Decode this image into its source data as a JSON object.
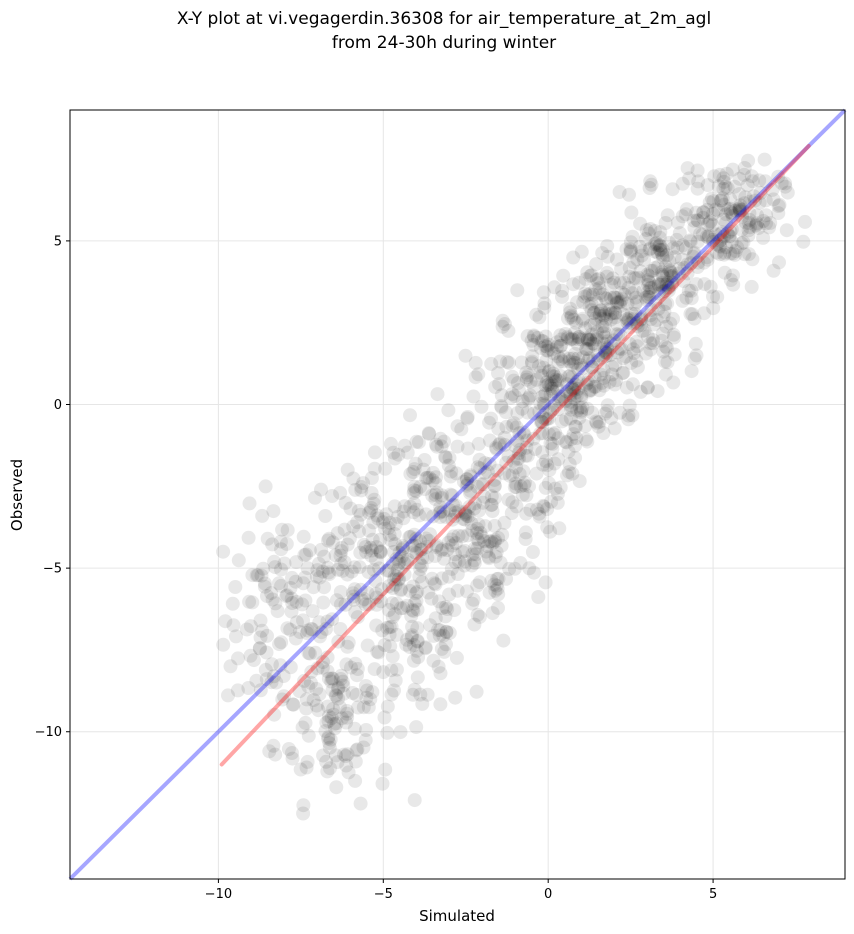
{
  "chart_data": {
    "type": "scatter",
    "title": "X-Y plot at vi.vegagerdin.36308 for air_temperature_at_2m_agl",
    "subtitle": "from 24-30h during winter",
    "xlabel": "Simulated",
    "ylabel": "Observed",
    "xlim": [
      -14.5,
      9.0
    ],
    "ylim": [
      -14.5,
      9.0
    ],
    "xticks": [
      -10,
      -5,
      0,
      5
    ],
    "yticks": [
      -10,
      -5,
      0,
      5
    ],
    "xtick_labels": [
      "−10",
      "−5",
      "0",
      "5"
    ],
    "ytick_labels": [
      "−10",
      "−5",
      "0",
      "5"
    ],
    "grid": true,
    "point_color": "#000000",
    "identity_line": {
      "x": [
        -14.5,
        9.0
      ],
      "y": [
        -14.5,
        9.0
      ],
      "color": "#0000ff"
    },
    "fit_line": {
      "x": [
        -9.9,
        7.9
      ],
      "y": [
        -11.0,
        7.9
      ],
      "color": "#ff0000"
    },
    "points_note": "",
    "clusters": [
      {
        "cx": -8.0,
        "cy": -6.5,
        "sx": 0.9,
        "sy": 1.6,
        "n": 120
      },
      {
        "cx": -6.5,
        "cy": -9.5,
        "sx": 0.9,
        "sy": 1.3,
        "n": 110
      },
      {
        "cx": -5.5,
        "cy": -4.5,
        "sx": 0.9,
        "sy": 1.3,
        "n": 130
      },
      {
        "cx": -4.0,
        "cy": -6.5,
        "sx": 0.8,
        "sy": 1.6,
        "n": 120
      },
      {
        "cx": -3.5,
        "cy": -2.8,
        "sx": 0.8,
        "sy": 1.1,
        "n": 90
      },
      {
        "cx": -2.0,
        "cy": -4.5,
        "sx": 0.9,
        "sy": 1.5,
        "n": 110
      },
      {
        "cx": -1.0,
        "cy": -1.2,
        "sx": 0.9,
        "sy": 1.4,
        "n": 150
      },
      {
        "cx": 0.5,
        "cy": 0.8,
        "sx": 0.9,
        "sy": 1.2,
        "n": 190
      },
      {
        "cx": 2.0,
        "cy": 2.2,
        "sx": 0.9,
        "sy": 1.1,
        "n": 200
      },
      {
        "cx": 3.5,
        "cy": 4.0,
        "sx": 0.9,
        "sy": 1.0,
        "n": 170
      },
      {
        "cx": 5.5,
        "cy": 5.8,
        "sx": 0.8,
        "sy": 0.8,
        "n": 150
      }
    ]
  }
}
